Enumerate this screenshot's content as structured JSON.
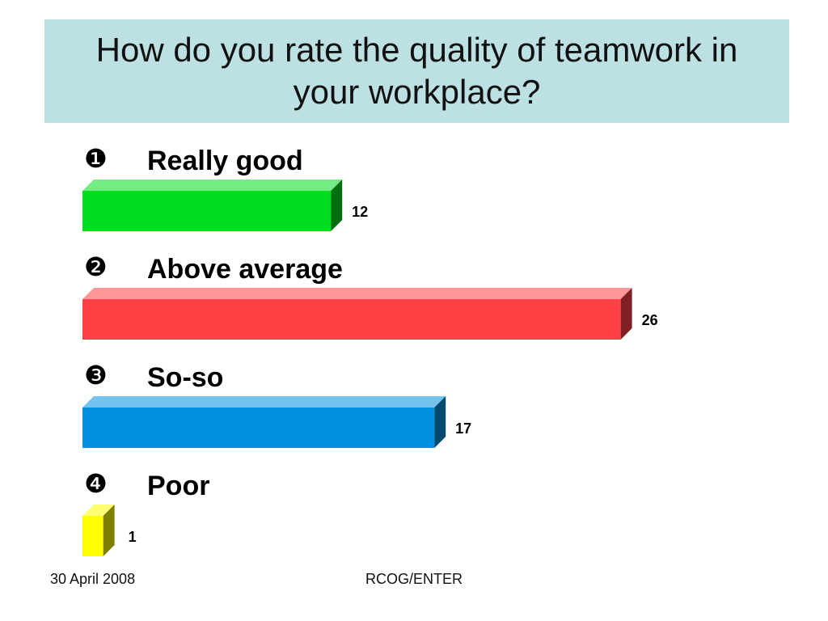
{
  "slide": {
    "title": "How do you rate the quality of teamwork in your workplace?",
    "footer_date": "30 April 2008",
    "footer_center": "RCOG/ENTER"
  },
  "chart_data": {
    "type": "bar",
    "orientation": "horizontal",
    "categories": [
      "Really good",
      "Above average",
      "So-so",
      "Poor"
    ],
    "markers": [
      "❶",
      "❷",
      "❸",
      "❹"
    ],
    "values": [
      12,
      26,
      17,
      1
    ],
    "colors": [
      "#00dd1e",
      "#ff4044",
      "#0091e0",
      "#ffff00"
    ],
    "title": "",
    "xlabel": "",
    "ylabel": "",
    "data_labels": true,
    "grid": false,
    "legend": "none"
  }
}
